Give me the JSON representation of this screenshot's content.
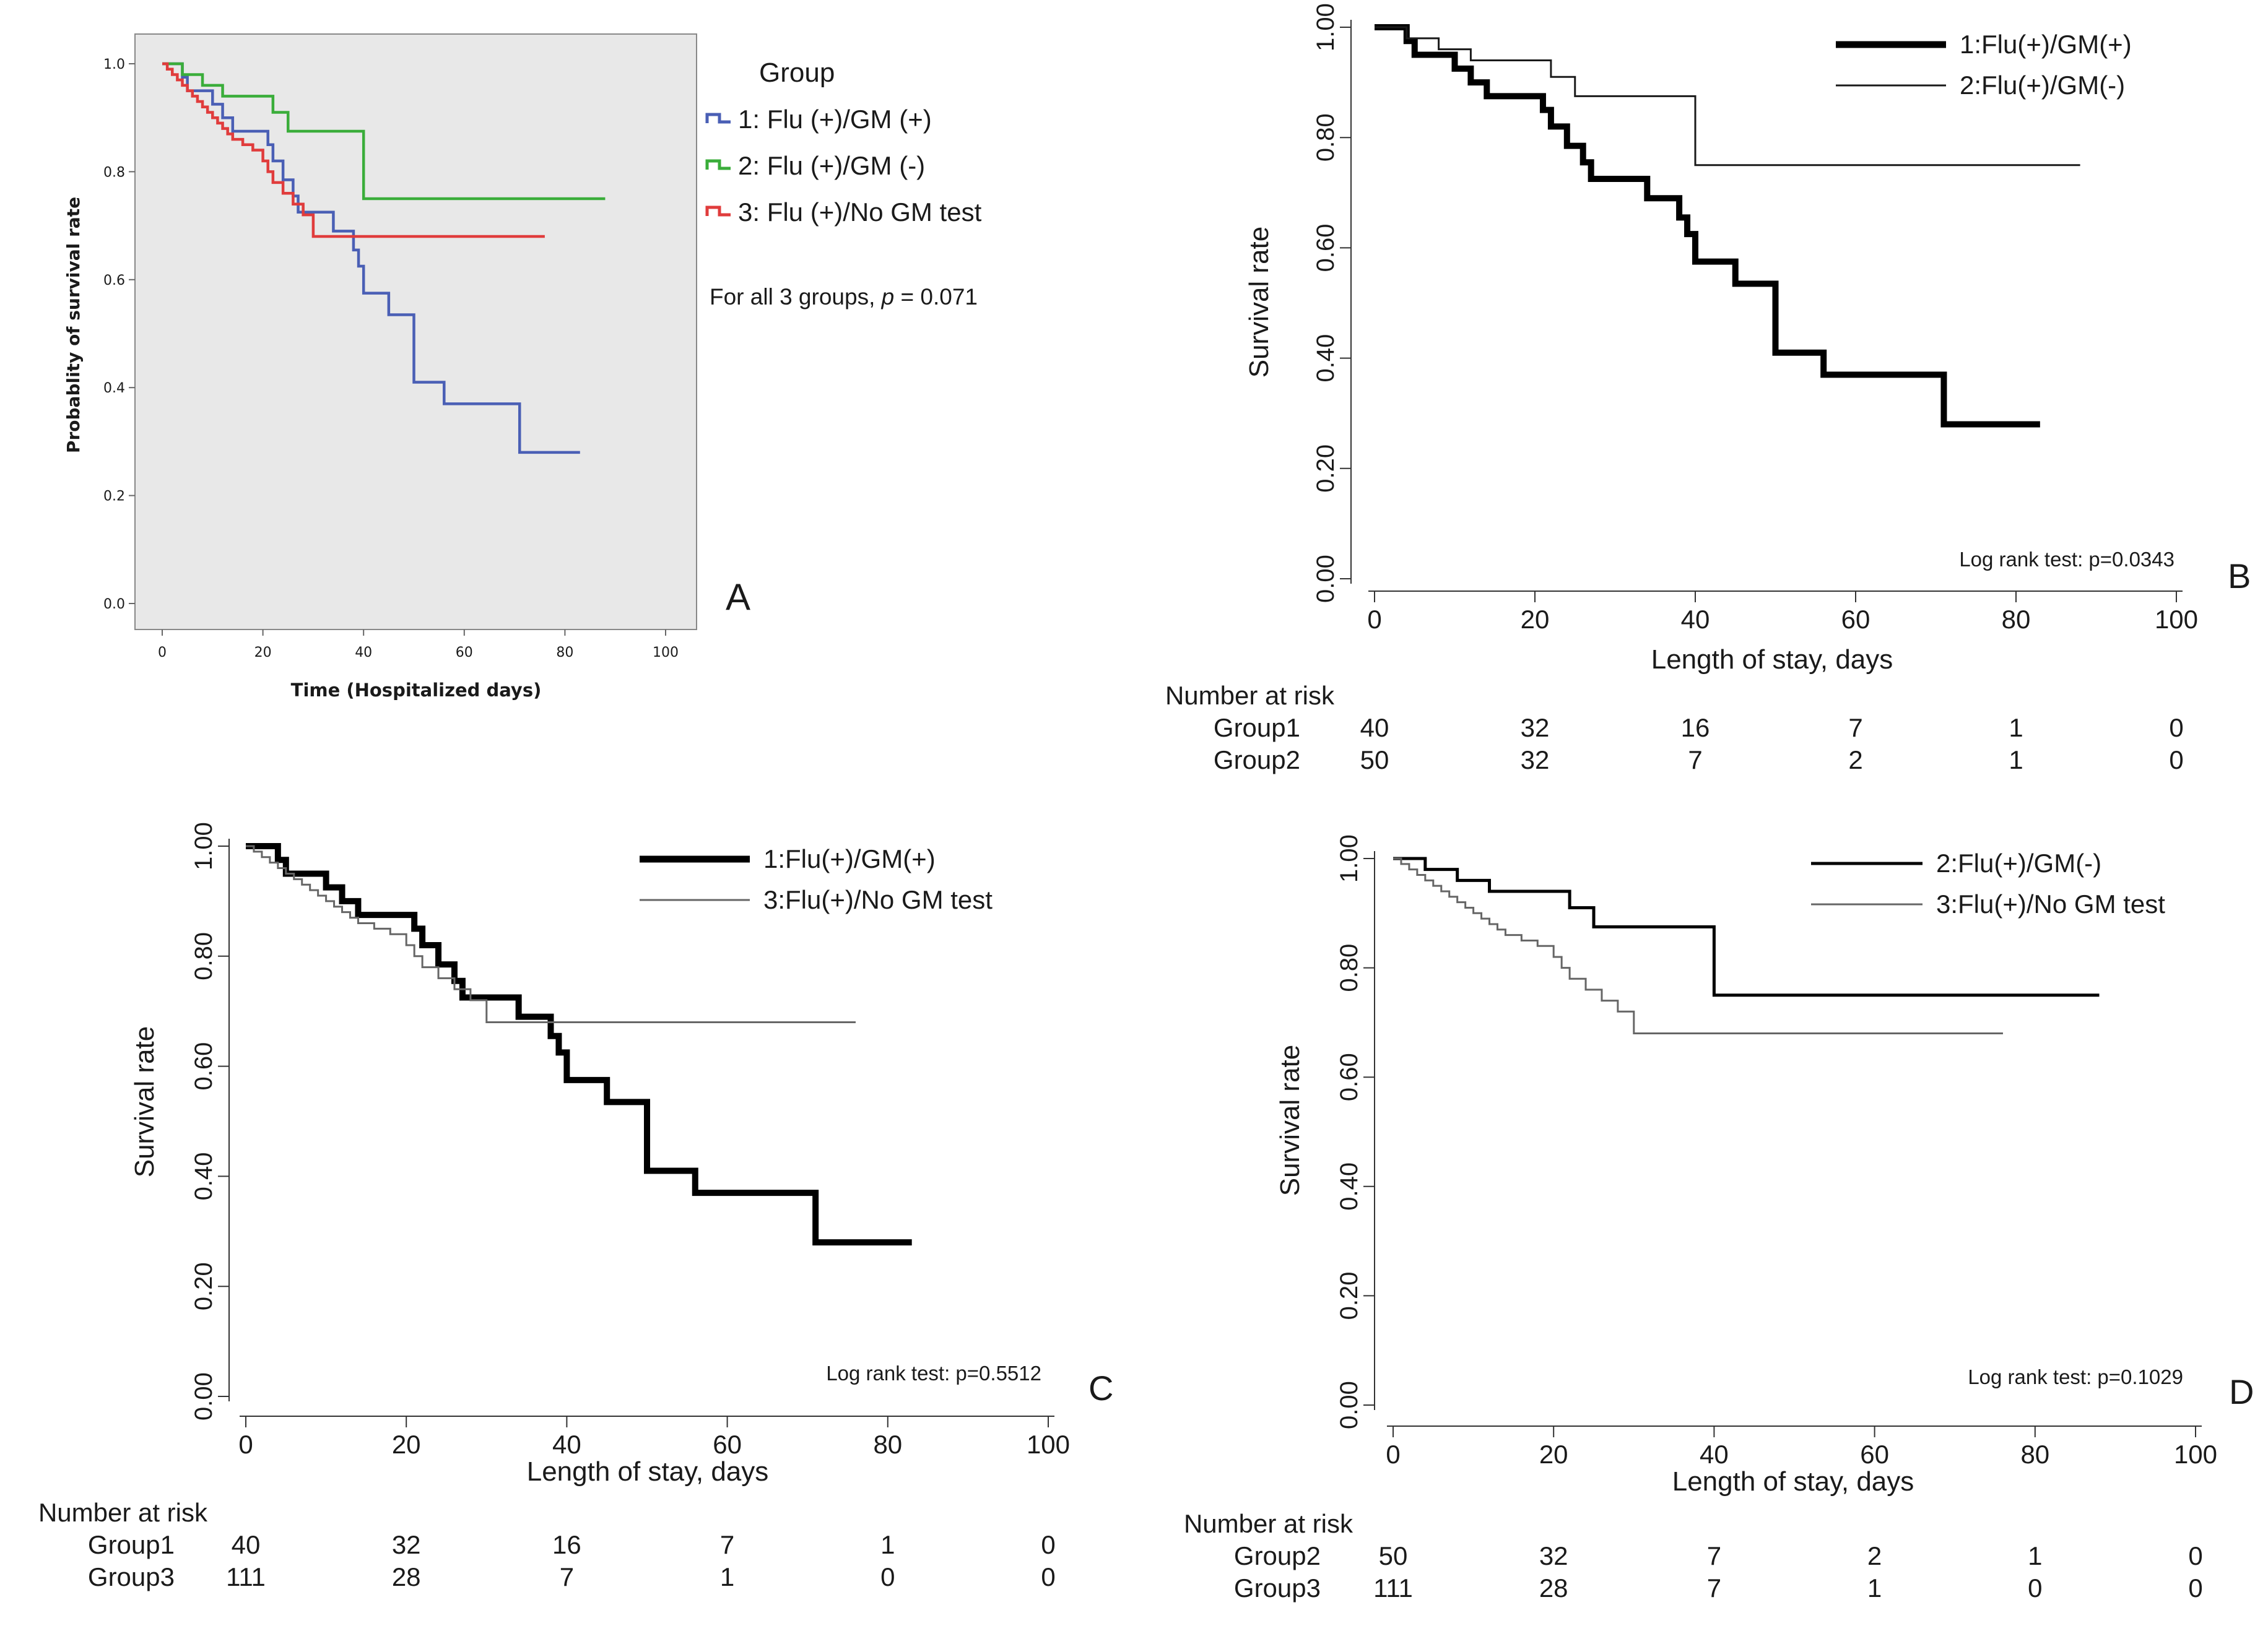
{
  "chart_data": [
    {
      "type": "line",
      "panel_letter": "A",
      "title": "",
      "xlabel": "Time (Hospitalized days)",
      "ylabel": "Probablity of survival rate",
      "xlim": [
        0,
        100
      ],
      "ylim": [
        0,
        1
      ],
      "xticks": [
        "0",
        "20",
        "40",
        "60",
        "80",
        "100"
      ],
      "yticks": [
        "0.0",
        "0.2",
        "0.4",
        "0.6",
        "0.8",
        "1.0"
      ],
      "legend_title": "Group",
      "annotation": "For all 3 groups, p = 0.071",
      "series": [
        {
          "name": "1: Flu (+)/GM (+)",
          "color": "#4a5fb5",
          "x": [
            0,
            4,
            5,
            9,
            10,
            12,
            14,
            20,
            21,
            22,
            24,
            26,
            27,
            34,
            37,
            38,
            39,
            40,
            45,
            50,
            56,
            71,
            83
          ],
          "y": [
            1,
            0.975,
            0.95,
            0.95,
            0.925,
            0.9,
            0.875,
            0.875,
            0.85,
            0.82,
            0.785,
            0.755,
            0.725,
            0.69,
            0.69,
            0.655,
            0.625,
            0.575,
            0.535,
            0.41,
            0.37,
            0.28,
            0.28
          ]
        },
        {
          "name": "2: Flu (+)/GM (-)",
          "color": "#3aad3a",
          "x": [
            0,
            4,
            8,
            12,
            22,
            25,
            40,
            88
          ],
          "y": [
            1,
            0.98,
            0.96,
            0.94,
            0.91,
            0.875,
            0.75,
            0.75
          ]
        },
        {
          "name": "3: Flu (+)/No GM test",
          "color": "#e03c3c",
          "x": [
            0,
            1,
            2,
            3,
            4,
            5,
            6,
            7,
            8,
            9,
            10,
            11,
            12,
            13,
            14,
            16,
            18,
            20,
            21,
            22,
            24,
            26,
            28,
            30,
            76
          ],
          "y": [
            1,
            0.99,
            0.98,
            0.97,
            0.96,
            0.95,
            0.94,
            0.93,
            0.92,
            0.91,
            0.9,
            0.89,
            0.88,
            0.87,
            0.86,
            0.85,
            0.84,
            0.82,
            0.8,
            0.78,
            0.76,
            0.74,
            0.72,
            0.68,
            0.68
          ]
        }
      ]
    },
    {
      "type": "line",
      "panel_letter": "B",
      "xlabel": "Length of stay, days",
      "ylabel": "Survival rate",
      "xlim": [
        0,
        100
      ],
      "ylim": [
        0,
        1
      ],
      "xticks": [
        "0",
        "20",
        "40",
        "60",
        "80",
        "100"
      ],
      "yticks": [
        "0.00",
        "0.20",
        "0.40",
        "0.60",
        "0.80",
        "1.00"
      ],
      "annotation": "Log rank test: p=0.0343",
      "series": [
        {
          "name": "1:Flu(+)/GM(+)",
          "style": "thick",
          "x": [
            0,
            4,
            5,
            9,
            10,
            12,
            14,
            20,
            21,
            22,
            24,
            26,
            27,
            34,
            37,
            38,
            39,
            40,
            45,
            50,
            56,
            71,
            83
          ],
          "y": [
            1,
            0.975,
            0.95,
            0.95,
            0.925,
            0.9,
            0.875,
            0.875,
            0.85,
            0.82,
            0.785,
            0.755,
            0.725,
            0.69,
            0.69,
            0.655,
            0.625,
            0.575,
            0.535,
            0.41,
            0.37,
            0.28,
            0.28
          ]
        },
        {
          "name": "2:Flu(+)/GM(-)",
          "style": "thin",
          "x": [
            0,
            4,
            8,
            12,
            22,
            25,
            40,
            88
          ],
          "y": [
            1,
            0.98,
            0.96,
            0.94,
            0.91,
            0.875,
            0.75,
            0.75
          ]
        }
      ],
      "risk_table": {
        "title": "Number at risk",
        "rows": [
          {
            "label": "Group1",
            "values": [
              "40",
              "32",
              "16",
              "7",
              "1",
              "0"
            ]
          },
          {
            "label": "Group2",
            "values": [
              "50",
              "32",
              "7",
              "2",
              "1",
              "0"
            ]
          }
        ]
      }
    },
    {
      "type": "line",
      "panel_letter": "C",
      "xlabel": "Length of stay, days",
      "ylabel": "Survival rate",
      "xlim": [
        0,
        100
      ],
      "ylim": [
        0,
        1
      ],
      "xticks": [
        "0",
        "20",
        "40",
        "60",
        "80",
        "100"
      ],
      "yticks": [
        "0.00",
        "0.20",
        "0.40",
        "0.60",
        "0.80",
        "1.00"
      ],
      "annotation": "Log rank test: p=0.5512",
      "series": [
        {
          "name": "1:Flu(+)/GM(+)",
          "style": "thick",
          "x": [
            0,
            4,
            5,
            9,
            10,
            12,
            14,
            20,
            21,
            22,
            24,
            26,
            27,
            34,
            37,
            38,
            39,
            40,
            45,
            50,
            56,
            71,
            83
          ],
          "y": [
            1,
            0.975,
            0.95,
            0.95,
            0.925,
            0.9,
            0.875,
            0.875,
            0.85,
            0.82,
            0.785,
            0.755,
            0.725,
            0.69,
            0.69,
            0.655,
            0.625,
            0.575,
            0.535,
            0.41,
            0.37,
            0.28,
            0.28
          ]
        },
        {
          "name": "3:Flu(+)/No GM test",
          "style": "thin",
          "x": [
            0,
            1,
            2,
            3,
            4,
            5,
            6,
            7,
            8,
            9,
            10,
            11,
            12,
            13,
            14,
            16,
            18,
            20,
            21,
            22,
            24,
            26,
            28,
            30,
            76
          ],
          "y": [
            1,
            0.99,
            0.98,
            0.97,
            0.96,
            0.95,
            0.94,
            0.93,
            0.92,
            0.91,
            0.9,
            0.89,
            0.88,
            0.87,
            0.86,
            0.85,
            0.84,
            0.82,
            0.8,
            0.78,
            0.76,
            0.74,
            0.72,
            0.68,
            0.68
          ]
        }
      ],
      "risk_table": {
        "title": "Number at risk",
        "rows": [
          {
            "label": "Group1",
            "values": [
              "40",
              "32",
              "16",
              "7",
              "1",
              "0"
            ]
          },
          {
            "label": "Group3",
            "values": [
              "111",
              "28",
              "7",
              "1",
              "0",
              "0"
            ]
          }
        ]
      }
    },
    {
      "type": "line",
      "panel_letter": "D",
      "xlabel": "Length of stay, days",
      "ylabel": "Survival rate",
      "xlim": [
        0,
        100
      ],
      "ylim": [
        0,
        1
      ],
      "xticks": [
        "0",
        "20",
        "40",
        "60",
        "80",
        "100"
      ],
      "yticks": [
        "0.00",
        "0.20",
        "0.40",
        "0.60",
        "0.80",
        "1.00"
      ],
      "annotation": "Log rank test: p=0.1029",
      "series": [
        {
          "name": "2:Flu(+)/GM(-)",
          "style": "thick",
          "x": [
            0,
            4,
            8,
            12,
            22,
            25,
            40,
            88
          ],
          "y": [
            1,
            0.98,
            0.96,
            0.94,
            0.91,
            0.875,
            0.75,
            0.75
          ]
        },
        {
          "name": "3:Flu(+)/No GM test",
          "style": "thin",
          "x": [
            0,
            1,
            2,
            3,
            4,
            5,
            6,
            7,
            8,
            9,
            10,
            11,
            12,
            13,
            14,
            16,
            18,
            20,
            21,
            22,
            24,
            26,
            28,
            30,
            76
          ],
          "y": [
            1,
            0.99,
            0.98,
            0.97,
            0.96,
            0.95,
            0.94,
            0.93,
            0.92,
            0.91,
            0.9,
            0.89,
            0.88,
            0.87,
            0.86,
            0.85,
            0.84,
            0.82,
            0.8,
            0.78,
            0.76,
            0.74,
            0.72,
            0.68,
            0.68
          ]
        }
      ],
      "risk_table": {
        "title": "Number at risk",
        "rows": [
          {
            "label": "Group2",
            "values": [
              "50",
              "32",
              "7",
              "2",
              "1",
              "0"
            ]
          },
          {
            "label": "Group3",
            "values": [
              "111",
              "28",
              "7",
              "1",
              "0",
              "0"
            ]
          }
        ]
      }
    }
  ]
}
